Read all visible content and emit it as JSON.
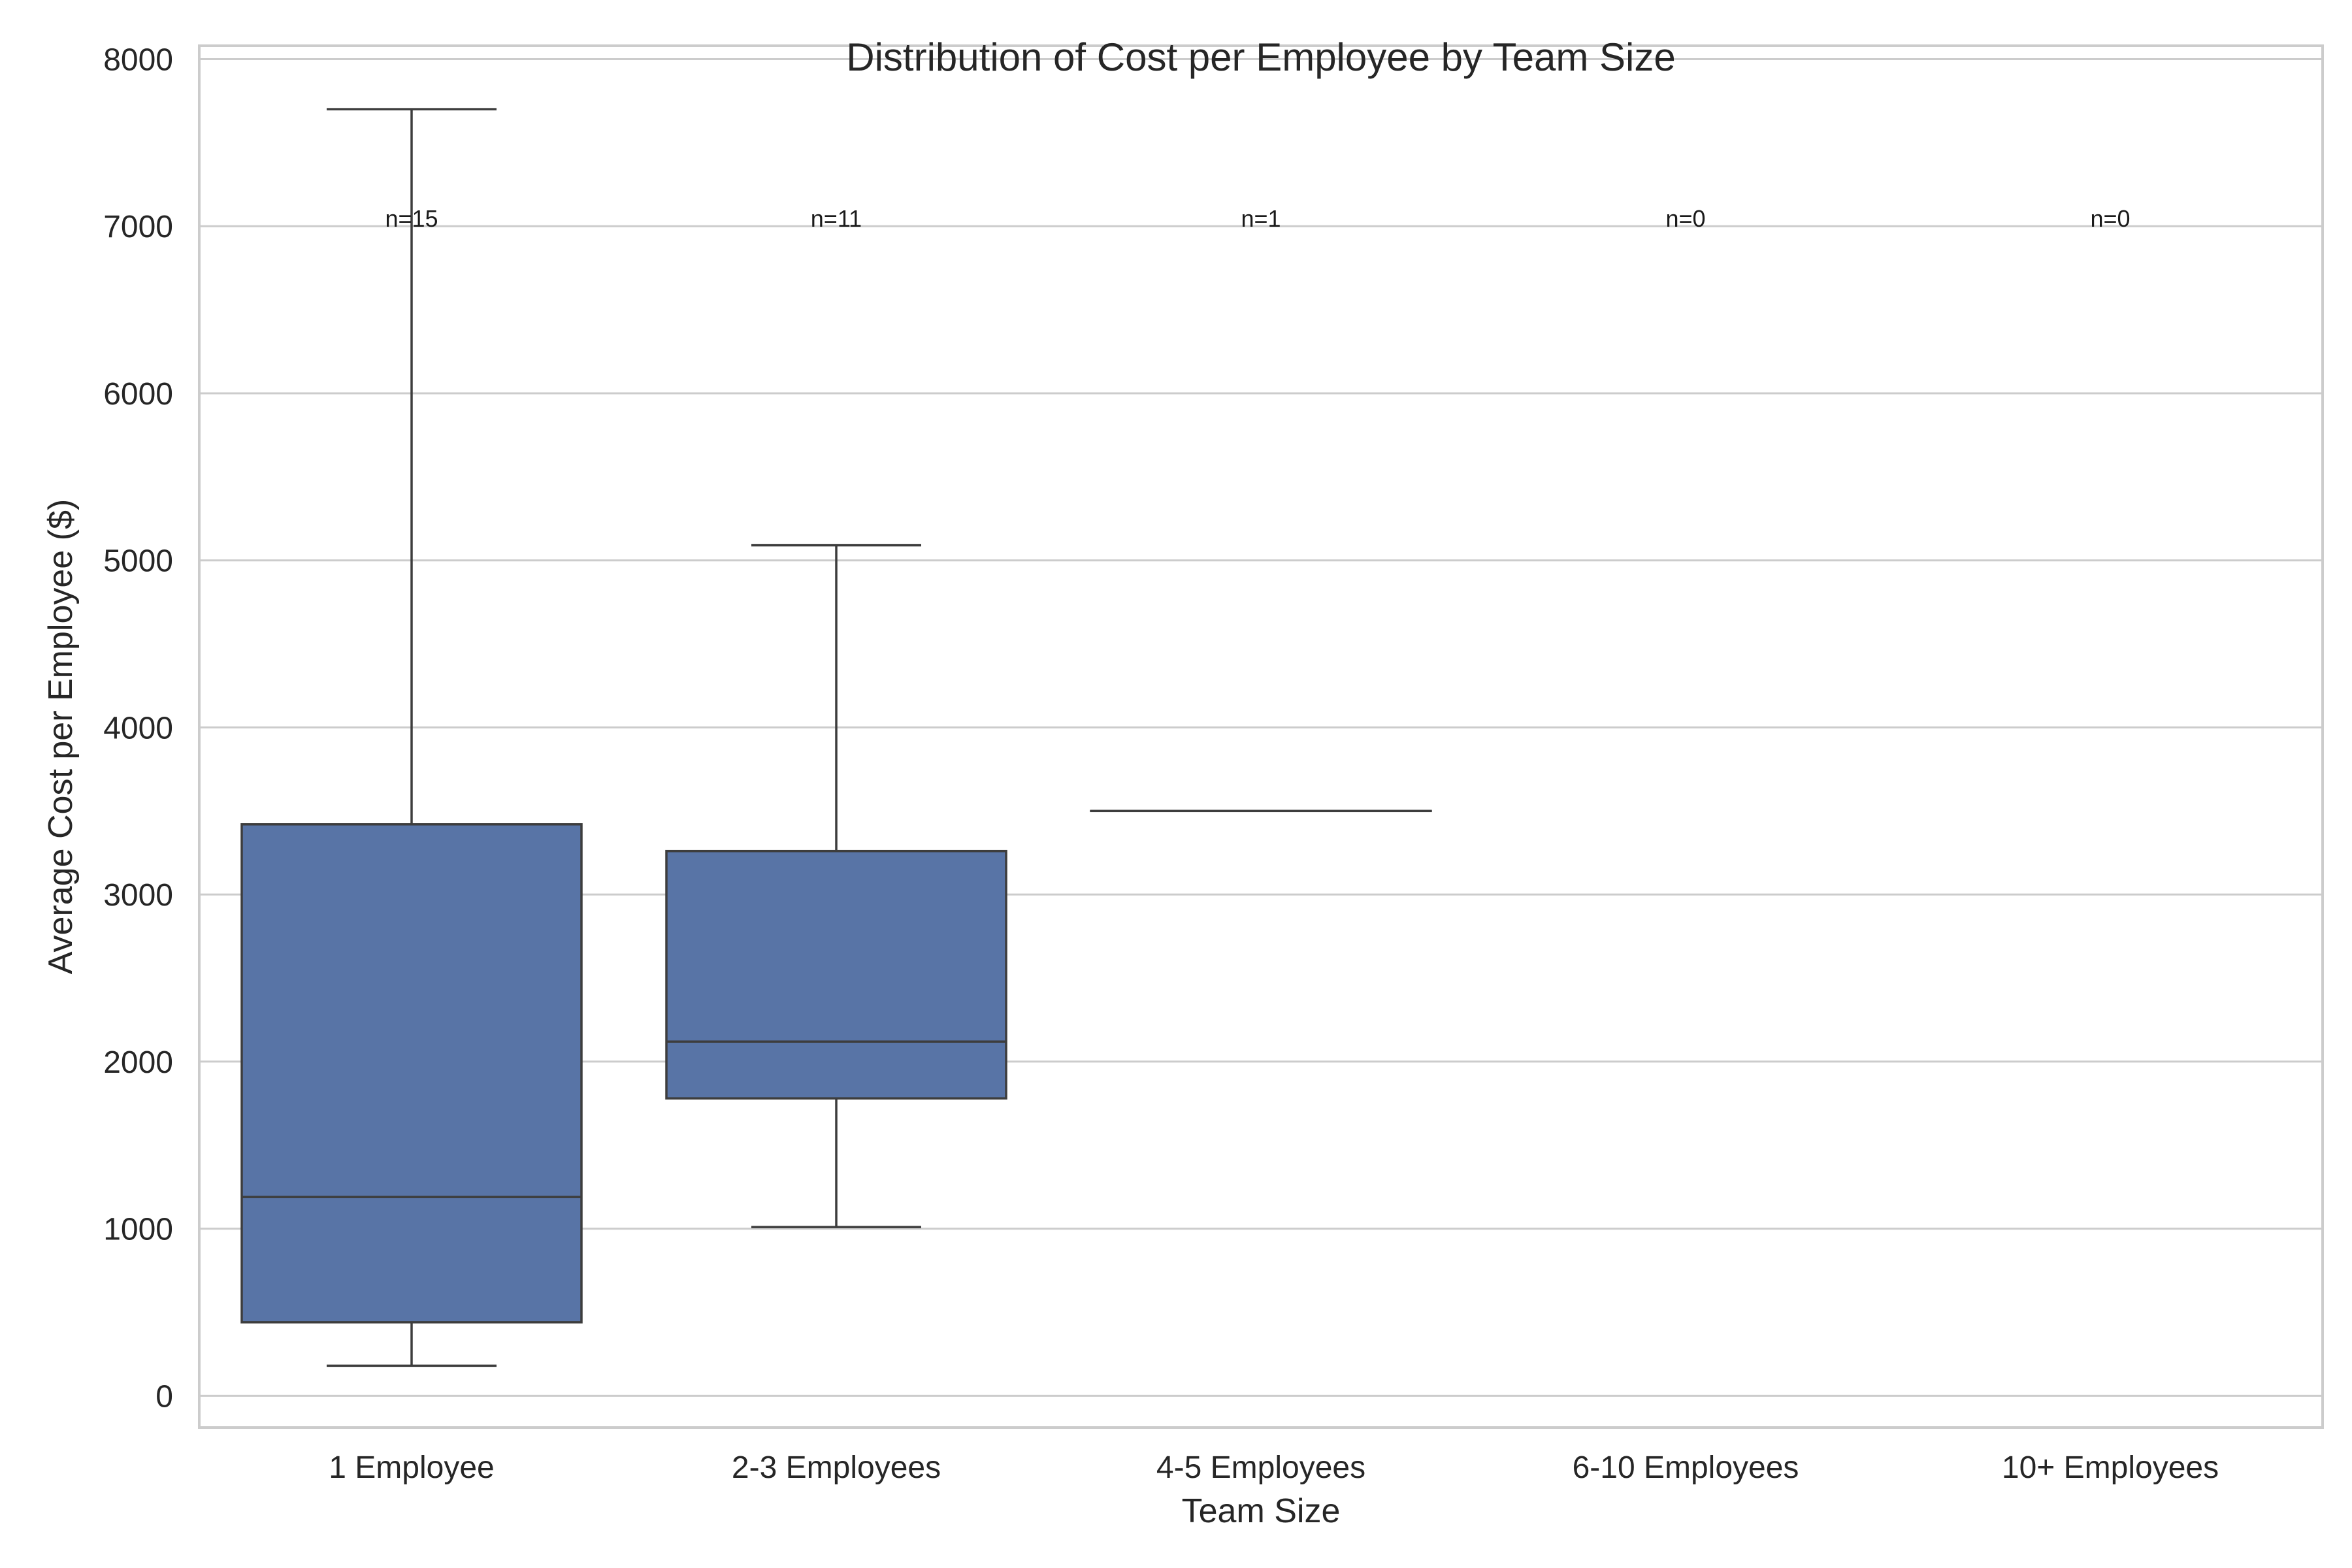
{
  "chart_data": {
    "type": "box",
    "title": "Distribution of Cost per Employee by Team Size",
    "xlabel": "Team Size",
    "ylabel": "Average Cost per Employee ($)",
    "categories": [
      "1 Employee",
      "2-3 Employees",
      "4-5 Employees",
      "6-10 Employees",
      "10+ Employees"
    ],
    "ylim": [
      -190,
      8080
    ],
    "yticks": [
      0,
      1000,
      2000,
      3000,
      4000,
      5000,
      6000,
      7000,
      8000
    ],
    "grid": true,
    "box_color": "#5874a6",
    "line_color": "#3d3d3d",
    "grid_color": "#cccccc",
    "boxes": [
      {
        "category": "1 Employee",
        "whisker_low": 180,
        "q1": 440,
        "median": 1190,
        "q3": 3420,
        "whisker_high": 7700,
        "n_label": "n=15"
      },
      {
        "category": "2-3 Employees",
        "whisker_low": 1010,
        "q1": 1780,
        "median": 2120,
        "q3": 3260,
        "whisker_high": 5090,
        "n_label": "n=11"
      },
      {
        "category": "4-5 Employees",
        "whisker_low": 3500,
        "q1": 3500,
        "median": 3500,
        "q3": 3500,
        "whisker_high": 3500,
        "n_label": "n=1"
      },
      {
        "category": "6-10 Employees",
        "n_label": "n=0"
      },
      {
        "category": "10+ Employees",
        "n_label": "n=0"
      }
    ],
    "n_label_y": 6950
  }
}
